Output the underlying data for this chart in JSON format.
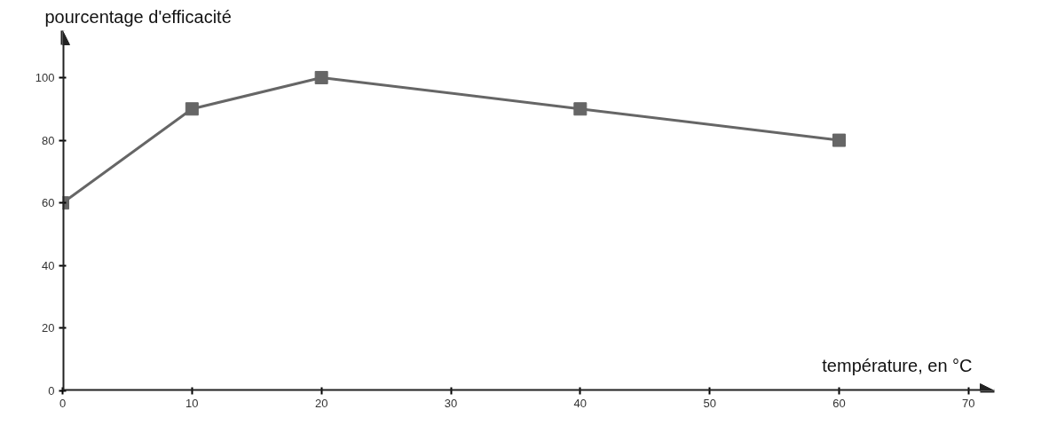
{
  "chart_data": {
    "type": "line",
    "xlabel": "température, en °C",
    "ylabel": "pourcentage d'efficacité",
    "x": [
      0,
      10,
      20,
      40,
      60
    ],
    "series": [
      {
        "color": "#666666",
        "values": [
          60,
          90,
          100,
          90,
          80
        ]
      }
    ],
    "xlim": [
      0,
      72
    ],
    "ylim": [
      0,
      115
    ],
    "xticks": [
      0,
      10,
      20,
      30,
      40,
      50,
      60,
      70
    ],
    "yticks": [
      0,
      20,
      40,
      60,
      80,
      100
    ],
    "marker": "square",
    "line_style": "solid",
    "grid": false
  }
}
